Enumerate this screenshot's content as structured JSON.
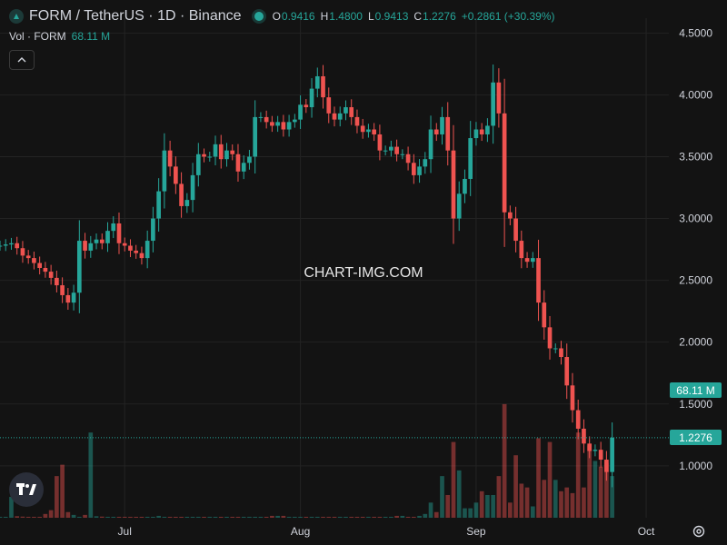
{
  "header": {
    "symbol": "FORM / TetherUS · 1D · Binance",
    "ohlc": {
      "o_label": "O",
      "o": "0.9416",
      "h_label": "H",
      "h": "1.4800",
      "l_label": "L",
      "l": "0.9413",
      "c_label": "C",
      "c": "1.2276",
      "change": "+0.2861 (+30.39%)"
    }
  },
  "volume_legend": {
    "label": "Vol · FORM",
    "value": "68.11 M"
  },
  "price_tags": {
    "volume": "68.11 M",
    "last_price": "1.2276"
  },
  "watermark": "CHART-IMG.COM",
  "colors": {
    "up": "#26a69a",
    "down": "#ef5350",
    "background": "#131313",
    "grid": "#232323"
  },
  "icons": {
    "collapse": "chevron-up-icon",
    "logo": "tradingview-logo-icon",
    "settings": "gear-icon"
  },
  "chart_data": {
    "type": "candlestick",
    "title": "FORM / TetherUS · 1D · Binance",
    "x_tick_labels": [
      "Jul",
      "Aug",
      "Sep",
      "Oct"
    ],
    "y_tick_labels": [
      "4.5000",
      "4.0000",
      "3.5000",
      "3.0000",
      "2.5000",
      "2.0000",
      "1.5000",
      "1.0000"
    ],
    "y_ticks": [
      4.5,
      4.0,
      3.5,
      3.0,
      2.5,
      2.0,
      1.5,
      1.0
    ],
    "ylim": [
      0.58,
      4.62
    ],
    "x_ticks": {
      "Jul": "2024-07-01",
      "Aug": "2024-08-01",
      "Sep": "2024-09-01",
      "Oct": "2024-10-01"
    },
    "xlim": [
      "2024-06-09",
      "2024-10-05"
    ],
    "grid": true,
    "last_price": 1.2276,
    "date_start": "2024-06-09",
    "closes": [
      2.78,
      2.79,
      2.8,
      2.76,
      2.7,
      2.68,
      2.64,
      2.6,
      2.57,
      2.52,
      2.46,
      2.38,
      2.32,
      2.4,
      2.82,
      2.74,
      2.8,
      2.83,
      2.8,
      2.9,
      2.96,
      2.8,
      2.78,
      2.74,
      2.72,
      2.68,
      2.82,
      3.0,
      3.22,
      3.55,
      3.42,
      3.28,
      3.1,
      3.15,
      3.35,
      3.52,
      3.5,
      3.5,
      3.6,
      3.48,
      3.55,
      3.52,
      3.38,
      3.45,
      3.5,
      3.82,
      3.82,
      3.78,
      3.75,
      3.78,
      3.72,
      3.78,
      3.8,
      3.92,
      3.9,
      4.05,
      4.15,
      3.98,
      3.85,
      3.8,
      3.85,
      3.9,
      3.82,
      3.75,
      3.7,
      3.72,
      3.68,
      3.55,
      3.55,
      3.58,
      3.52,
      3.52,
      3.45,
      3.35,
      3.42,
      3.48,
      3.72,
      3.68,
      3.82,
      3.55,
      3.0,
      3.2,
      3.32,
      3.65,
      3.72,
      3.68,
      3.75,
      4.1,
      3.85,
      3.05,
      3.0,
      2.82,
      2.68,
      2.65,
      2.68,
      2.32,
      2.12,
      1.95,
      1.95,
      1.88,
      1.65,
      1.45,
      1.3,
      1.18,
      1.12,
      1.13,
      1.05,
      0.95,
      1.2276
    ],
    "volume": [
      0.5,
      0.5,
      11,
      0.8,
      0.6,
      0.5,
      0.5,
      0.5,
      2,
      4,
      22,
      28,
      3,
      1.5,
      0.5,
      1.5,
      45,
      0.8,
      0.6,
      0.5,
      0.5,
      0.5,
      0.5,
      0.5,
      0.5,
      0.5,
      0.5,
      0.5,
      1,
      0.5,
      0.5,
      0.5,
      0.5,
      0.5,
      0.5,
      0.5,
      0.5,
      0.5,
      0.5,
      0.5,
      0.5,
      0.5,
      0.5,
      0.5,
      0.5,
      0.5,
      0.5,
      0.5,
      1,
      1,
      1,
      0.5,
      0.5,
      0.5,
      0.5,
      0.5,
      0.5,
      0.5,
      0.5,
      0.5,
      0.5,
      0.5,
      0.5,
      0.5,
      0.5,
      0.5,
      0.5,
      0.5,
      0.5,
      0.5,
      1,
      1,
      0.5,
      0.5,
      1,
      2,
      8,
      3,
      22,
      12,
      40,
      25,
      5,
      5,
      8,
      14,
      12,
      12,
      22,
      60,
      8,
      33,
      18,
      16,
      6,
      42,
      20,
      40,
      20,
      14,
      16,
      13,
      45,
      16,
      38,
      30,
      27,
      29,
      22,
      16,
      13,
      68.11
    ],
    "volume_units": "M",
    "series": [
      {
        "name": "FORM / TetherUS",
        "type": "candlestick"
      },
      {
        "name": "Vol · FORM",
        "type": "bar"
      }
    ]
  }
}
